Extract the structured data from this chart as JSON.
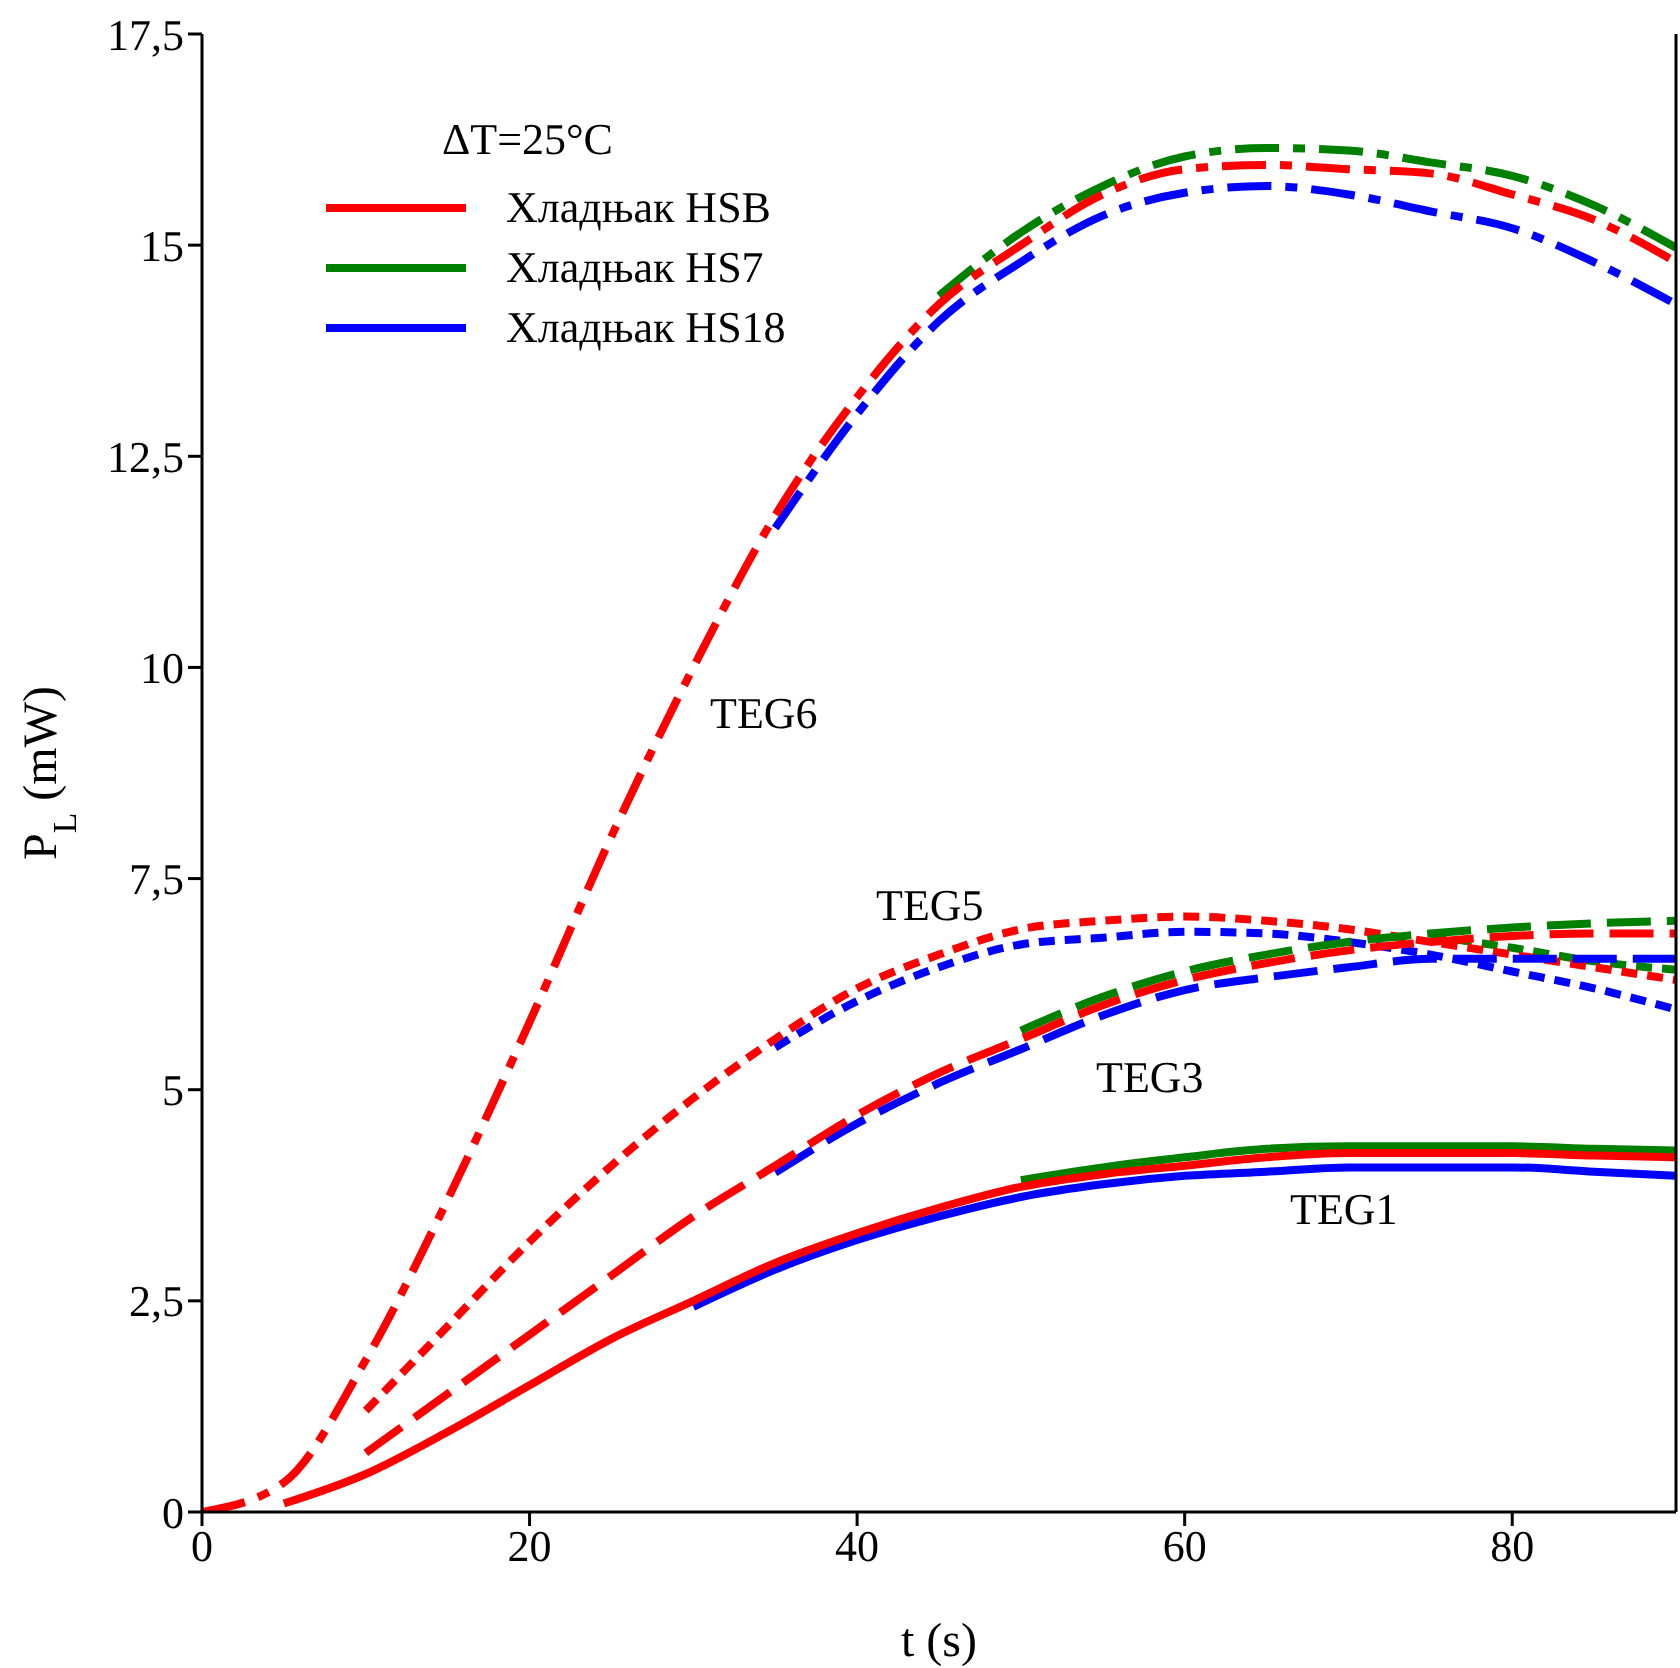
{
  "chart_data": {
    "type": "line",
    "xlabel": "t (s)",
    "ylabel": "P$_{L}$ (mW)",
    "legend_title": "ΔT=25°C",
    "legend": "top left",
    "grid": false,
    "marker": "none",
    "x": [
      0,
      5,
      10,
      15,
      20,
      25,
      30,
      35,
      40,
      45,
      50,
      55,
      60,
      65,
      70,
      75,
      80,
      85,
      90
    ],
    "xlim": [
      0,
      90
    ],
    "xticks": [
      0,
      20,
      40,
      60,
      80
    ],
    "ylim": [
      0,
      17.5
    ],
    "yticks": [
      0,
      {
        "value": 2.5,
        "label": "2,5"
      },
      5,
      {
        "value": 7.5,
        "label": "7,5"
      },
      10,
      {
        "value": 12.5,
        "label": "12,5"
      },
      15,
      {
        "value": 17.5,
        "label": "17,5"
      }
    ],
    "series": [
      {
        "name": "Хладњак HSB",
        "color": "#ff0000",
        "line_style": "solid",
        "values": [
          null,
          0.1,
          0.45,
          0.95,
          1.5,
          2.05,
          2.5,
          2.95,
          3.3,
          3.6,
          3.85,
          4.0,
          4.1,
          4.2,
          4.25,
          4.25,
          4.25,
          4.22,
          4.2
        ]
      },
      {
        "name": "Хладњак HS7",
        "color": "#008000",
        "line_style": "solid",
        "values": [
          null,
          null,
          null,
          null,
          null,
          null,
          null,
          null,
          null,
          null,
          3.93,
          4.08,
          4.2,
          4.3,
          4.33,
          4.33,
          4.33,
          4.3,
          4.28
        ]
      },
      {
        "name": "Хладњак HS18",
        "color": "#0000ff",
        "line_style": "solid",
        "values": [
          null,
          null,
          null,
          null,
          null,
          null,
          2.43,
          2.87,
          3.22,
          3.5,
          3.73,
          3.88,
          3.98,
          4.03,
          4.08,
          4.08,
          4.08,
          4.03,
          3.98
        ]
      },
      {
        "color": "#ff0000",
        "line_style": "dashed",
        "values": [
          null,
          null,
          0.7,
          1.4,
          2.1,
          2.8,
          3.5,
          4.1,
          4.7,
          5.2,
          5.6,
          6.0,
          6.3,
          6.5,
          6.65,
          6.75,
          6.82,
          6.85,
          6.85
        ]
      },
      {
        "color": "#008000",
        "line_style": "dashed",
        "values": [
          null,
          null,
          null,
          null,
          null,
          null,
          null,
          null,
          null,
          null,
          5.7,
          6.1,
          6.4,
          6.6,
          6.75,
          6.85,
          6.92,
          6.97,
          7.0
        ]
      },
      {
        "color": "#0000ff",
        "line_style": "dashed",
        "values": [
          null,
          null,
          null,
          null,
          null,
          null,
          null,
          4.02,
          4.6,
          5.08,
          5.48,
          5.88,
          6.18,
          6.33,
          6.45,
          6.55,
          6.55,
          6.55,
          6.55
        ]
      },
      {
        "color": "#ff0000",
        "line_style": "dotted",
        "values": [
          null,
          null,
          1.2,
          2.2,
          3.2,
          4.1,
          4.9,
          5.6,
          6.2,
          6.6,
          6.9,
          7.0,
          7.05,
          7.0,
          6.9,
          6.75,
          6.6,
          6.45,
          6.3
        ]
      },
      {
        "color": "#008000",
        "line_style": "dotted",
        "values": [
          null,
          null,
          null,
          null,
          null,
          null,
          null,
          null,
          null,
          null,
          null,
          null,
          null,
          null,
          null,
          6.82,
          6.68,
          6.52,
          6.42
        ]
      },
      {
        "color": "#0000ff",
        "line_style": "dotted",
        "values": [
          null,
          null,
          null,
          null,
          null,
          null,
          null,
          5.5,
          6.05,
          6.45,
          6.72,
          6.8,
          6.87,
          6.85,
          6.75,
          6.6,
          6.4,
          6.2,
          5.95
        ]
      },
      {
        "color": "#ff0000",
        "line_style": "dashdot",
        "values": [
          0,
          0.35,
          1.8,
          3.7,
          5.8,
          8.0,
          10.0,
          11.8,
          13.2,
          14.3,
          15.0,
          15.6,
          15.9,
          15.95,
          15.9,
          15.85,
          15.6,
          15.3,
          14.8
        ]
      },
      {
        "color": "#008000",
        "line_style": "dashdot",
        "values": [
          null,
          null,
          null,
          null,
          null,
          null,
          null,
          null,
          null,
          14.4,
          15.15,
          15.7,
          16.05,
          16.15,
          16.12,
          15.98,
          15.82,
          15.47,
          14.97
        ]
      },
      {
        "color": "#0000ff",
        "line_style": "dashdot",
        "values": [
          null,
          null,
          null,
          null,
          null,
          null,
          null,
          11.65,
          13.0,
          14.1,
          14.8,
          15.35,
          15.62,
          15.7,
          15.6,
          15.4,
          15.2,
          14.8,
          14.3
        ]
      }
    ],
    "annotations": [
      "TEG6",
      "TEG5",
      "TEG3",
      "TEG1"
    ]
  }
}
